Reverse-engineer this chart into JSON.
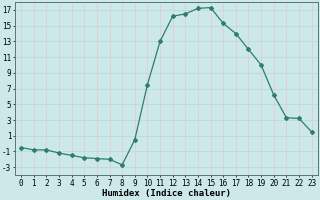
{
  "x": [
    0,
    1,
    2,
    3,
    4,
    5,
    6,
    7,
    8,
    9,
    10,
    11,
    12,
    13,
    14,
    15,
    16,
    17,
    18,
    19,
    20,
    21,
    22,
    23
  ],
  "y": [
    -0.5,
    -0.8,
    -0.8,
    -1.2,
    -1.5,
    -1.8,
    -1.9,
    -2.0,
    -2.7,
    0.5,
    7.5,
    13.0,
    16.2,
    16.5,
    17.2,
    17.3,
    15.3,
    14.0,
    12.0,
    10.0,
    6.2,
    3.3,
    3.2,
    1.5
  ],
  "line_color": "#2e7d6e",
  "marker": "D",
  "markersize": 2,
  "linewidth": 0.9,
  "xlabel": "Humidex (Indice chaleur)",
  "xlim": [
    -0.5,
    23.5
  ],
  "ylim": [
    -4,
    18
  ],
  "yticks": [
    -3,
    -1,
    1,
    3,
    5,
    7,
    9,
    11,
    13,
    15,
    17
  ],
  "xticks": [
    0,
    1,
    2,
    3,
    4,
    5,
    6,
    7,
    8,
    9,
    10,
    11,
    12,
    13,
    14,
    15,
    16,
    17,
    18,
    19,
    20,
    21,
    22,
    23
  ],
  "bg_color": "#cce8e8",
  "grid_v_color": "#e8c8c8",
  "grid_h_color": "#b8d8d8",
  "xlabel_fontsize": 6.5,
  "tick_fontsize": 5.5
}
